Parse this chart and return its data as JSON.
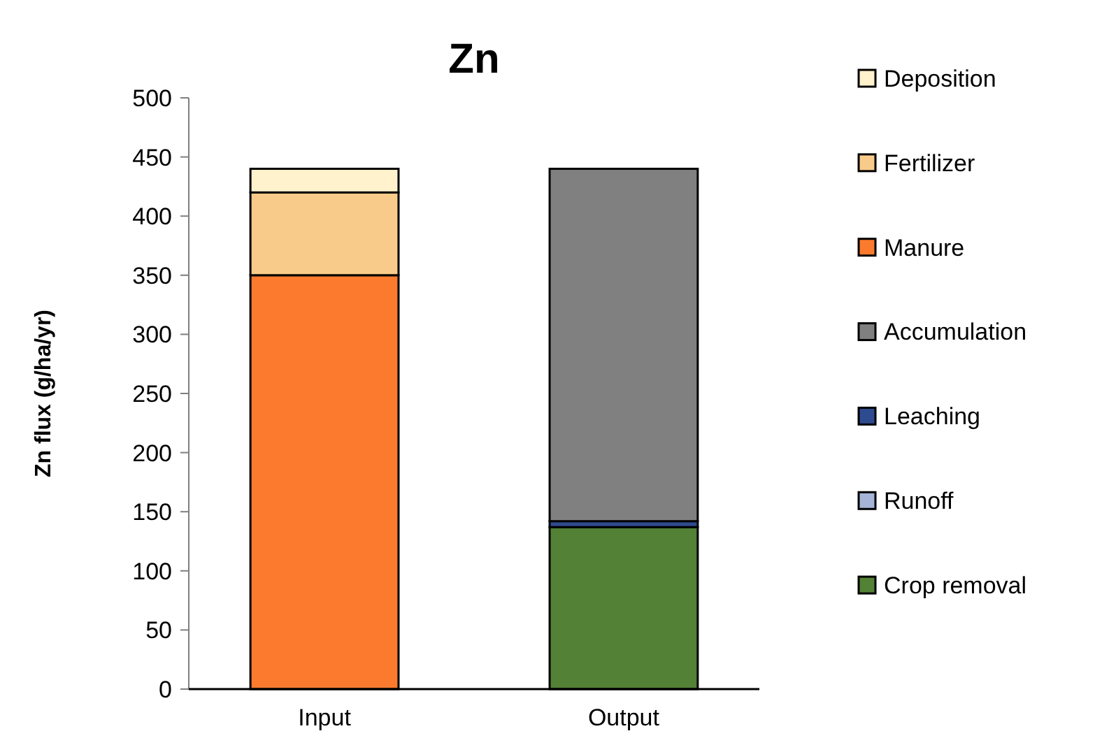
{
  "chart_data": {
    "type": "bar",
    "title": "Zn",
    "ylabel": "Zn flux (g/ha/yr)",
    "categories": [
      "Input",
      "Output"
    ],
    "stacked": true,
    "ylim": [
      0,
      500
    ],
    "yticks": [
      0,
      50,
      100,
      150,
      200,
      250,
      300,
      350,
      400,
      450,
      500
    ],
    "grid": false,
    "legend": "right",
    "series": [
      {
        "name": "Crop removal",
        "color": "#538135",
        "values": [
          null,
          137
        ]
      },
      {
        "name": "Runoff",
        "color": "#a6b4d8",
        "values": [
          null,
          null
        ]
      },
      {
        "name": "Leaching",
        "color": "#2f4b8f",
        "values": [
          null,
          5
        ]
      },
      {
        "name": "Accumulation",
        "color": "#808080",
        "values": [
          null,
          298
        ]
      },
      {
        "name": "Manure",
        "color": "#fb7a2e",
        "values": [
          350,
          null
        ]
      },
      {
        "name": "Fertilizer",
        "color": "#f9cb8a",
        "values": [
          70,
          null
        ]
      },
      {
        "name": "Deposition",
        "color": "#fff2cc",
        "values": [
          20,
          null
        ]
      }
    ]
  }
}
